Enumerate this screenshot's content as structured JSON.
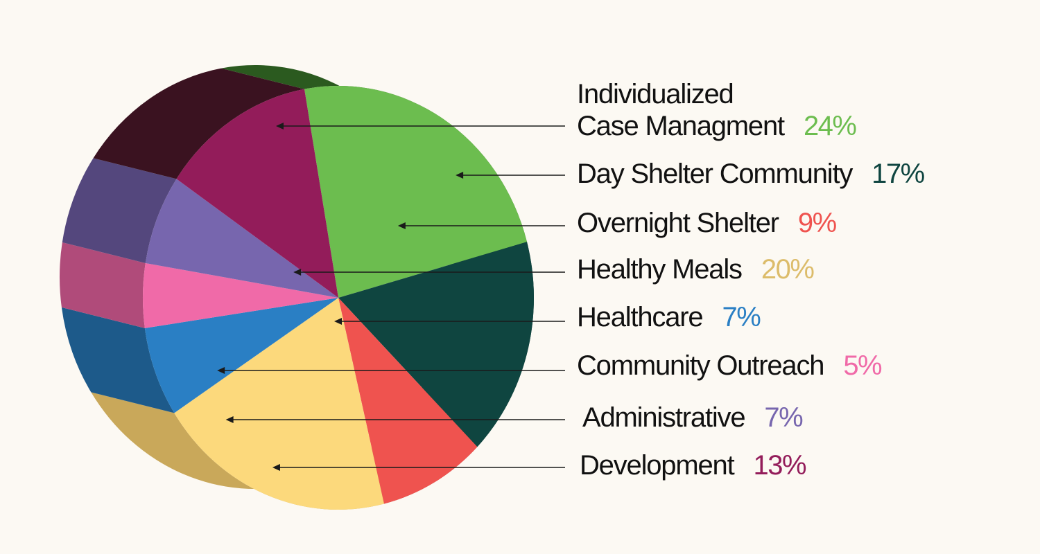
{
  "chart_data": {
    "type": "pie",
    "title": "",
    "slices": [
      {
        "label": "Individualized Case Managment",
        "label_line1": "Individualized",
        "label_line2": "Case Managment",
        "value": 24,
        "display": "24%",
        "color": "#6cbd4f",
        "side_color": "#2b5a1f"
      },
      {
        "label": "Day Shelter Community",
        "value": 17,
        "display": "17%",
        "color": "#0f4540",
        "side_color": "#1e4a3f"
      },
      {
        "label": "Overnight Shelter",
        "value": 9,
        "display": "9%",
        "color": "#ef534f",
        "side_color": "#a83a38"
      },
      {
        "label": "Healthy Meals",
        "value": 20,
        "display": "20%",
        "color": "#fcd97c",
        "side_color": "#c9a85a"
      },
      {
        "label": "Healthcare",
        "value": 7,
        "display": "7%",
        "color": "#2a7fc4",
        "side_color": "#1d5a8a"
      },
      {
        "label": "Community Outreach",
        "value": 5,
        "display": "5%",
        "color": "#f06aa8",
        "side_color": "#b04b7a"
      },
      {
        "label": "Administrative",
        "value": 7,
        "display": "7%",
        "color": "#7766ae",
        "side_color": "#54477d"
      },
      {
        "label": "Development",
        "value": 13,
        "display": "13%",
        "color": "#931c5a",
        "side_color": "#3a1220"
      }
    ],
    "pct_colors": [
      "#6cbd4f",
      "#0f4540",
      "#ef534f",
      "#dcbc6a",
      "#2a7fc4",
      "#f06aa8",
      "#7766ae",
      "#931c5a"
    ]
  }
}
